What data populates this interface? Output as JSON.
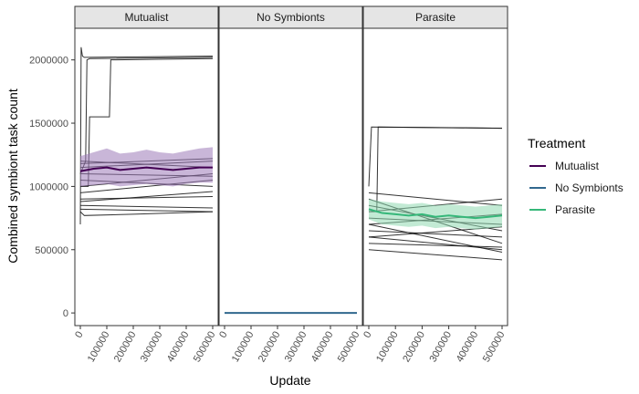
{
  "chart_data": {
    "type": "line",
    "xlabel": "Update",
    "ylabel": "Combined symbiont task count",
    "x_ticks": [
      "0",
      "100000",
      "200000",
      "300000",
      "400000",
      "500000"
    ],
    "xlim": [
      0,
      500000
    ],
    "y_ticks": [
      "0",
      "500000",
      "1000000",
      "1500000",
      "2000000"
    ],
    "ylim": [
      -100000,
      2250000
    ],
    "panels": [
      {
        "name": "Mutualist",
        "mean": {
          "x": [
            0,
            50000,
            100000,
            150000,
            200000,
            250000,
            300000,
            350000,
            400000,
            450000,
            500000
          ],
          "y": [
            1120000,
            1140000,
            1150000,
            1130000,
            1140000,
            1150000,
            1140000,
            1130000,
            1140000,
            1150000,
            1150000
          ],
          "lower": [
            1000000,
            1010000,
            1020000,
            1000000,
            1010000,
            1020000,
            1010000,
            1000000,
            1020000,
            1030000,
            1030000
          ],
          "upper": [
            1240000,
            1270000,
            1300000,
            1260000,
            1270000,
            1290000,
            1270000,
            1260000,
            1280000,
            1300000,
            1310000
          ]
        },
        "replicates": [
          {
            "x": [
              0,
              3000,
              8000,
              15000,
              500000
            ],
            "y": [
              700000,
              2100000,
              2030000,
              2020000,
              2030000
            ]
          },
          {
            "x": [
              0,
              20000,
              25000,
              35000,
              500000
            ],
            "y": [
              1100000,
              1200000,
              2000000,
              2010000,
              2020000
            ]
          },
          {
            "x": [
              0,
              30000,
              35000,
              110000,
              115000,
              500000
            ],
            "y": [
              1000000,
              1000000,
              1550000,
              1550000,
              2000000,
              2010000
            ]
          },
          {
            "x": [
              0,
              15000,
              200000,
              500000
            ],
            "y": [
              800000,
              770000,
              780000,
              800000
            ]
          },
          {
            "x": [
              0,
              500000
            ],
            "y": [
              1100000,
              1080000
            ]
          },
          {
            "x": [
              0,
              500000
            ],
            "y": [
              950000,
              1050000
            ]
          },
          {
            "x": [
              0,
              500000
            ],
            "y": [
              1200000,
              1150000
            ]
          },
          {
            "x": [
              0,
              500000
            ],
            "y": [
              900000,
              920000
            ]
          },
          {
            "x": [
              0,
              500000
            ],
            "y": [
              1050000,
              1000000
            ]
          },
          {
            "x": [
              0,
              500000
            ],
            "y": [
              1150000,
              1200000
            ]
          },
          {
            "x": [
              0,
              500000
            ],
            "y": [
              850000,
              830000
            ]
          },
          {
            "x": [
              0,
              500000
            ],
            "y": [
              1000000,
              1100000
            ]
          },
          {
            "x": [
              0,
              500000
            ],
            "y": [
              1180000,
              1220000
            ]
          },
          {
            "x": [
              0,
              500000
            ],
            "y": [
              880000,
              960000
            ]
          },
          {
            "x": [
              0,
              500000
            ],
            "y": [
              820000,
              800000
            ]
          }
        ]
      },
      {
        "name": "No Symbionts",
        "mean": {
          "x": [
            0,
            500000
          ],
          "y": [
            0,
            0
          ],
          "lower": [
            0,
            0
          ],
          "upper": [
            0,
            0
          ]
        },
        "replicates": []
      },
      {
        "name": "Parasite",
        "mean": {
          "x": [
            0,
            50000,
            100000,
            150000,
            200000,
            250000,
            300000,
            350000,
            400000,
            450000,
            500000
          ],
          "y": [
            820000,
            790000,
            780000,
            770000,
            780000,
            760000,
            770000,
            760000,
            750000,
            760000,
            770000
          ],
          "lower": [
            740000,
            700000,
            690000,
            680000,
            690000,
            670000,
            680000,
            670000,
            660000,
            670000,
            680000
          ],
          "upper": [
            900000,
            880000,
            870000,
            860000,
            870000,
            850000,
            860000,
            850000,
            840000,
            850000,
            860000
          ]
        },
        "replicates": [
          {
            "x": [
              0,
              10000,
              500000
            ],
            "y": [
              1000000,
              1470000,
              1460000
            ]
          },
          {
            "x": [
              0,
              30000,
              35000,
              500000
            ],
            "y": [
              800000,
              800000,
              1470000,
              1460000
            ]
          },
          {
            "x": [
              0,
              500000
            ],
            "y": [
              600000,
              500000
            ]
          },
          {
            "x": [
              0,
              500000
            ],
            "y": [
              700000,
              480000
            ]
          },
          {
            "x": [
              0,
              500000
            ],
            "y": [
              500000,
              420000
            ]
          },
          {
            "x": [
              0,
              500000
            ],
            "y": [
              900000,
              550000
            ]
          },
          {
            "x": [
              0,
              500000
            ],
            "y": [
              650000,
              600000
            ]
          },
          {
            "x": [
              0,
              500000
            ],
            "y": [
              750000,
              700000
            ]
          },
          {
            "x": [
              0,
              500000
            ],
            "y": [
              550000,
              520000
            ]
          },
          {
            "x": [
              0,
              500000
            ],
            "y": [
              850000,
              650000
            ]
          },
          {
            "x": [
              0,
              500000
            ],
            "y": [
              700000,
              780000
            ]
          },
          {
            "x": [
              0,
              500000
            ],
            "y": [
              950000,
              850000
            ]
          },
          {
            "x": [
              0,
              500000
            ],
            "y": [
              600000,
              680000
            ]
          },
          {
            "x": [
              0,
              500000
            ],
            "y": [
              800000,
              900000
            ]
          }
        ]
      }
    ],
    "legend": {
      "title": "Treatment",
      "placement": "right",
      "entries": [
        {
          "label": "Mutualist",
          "color": "#440154"
        },
        {
          "label": "No Symbionts",
          "color": "#31688E"
        },
        {
          "label": "Parasite",
          "color": "#35B779"
        }
      ]
    },
    "colors": {
      "Mutualist": "#440154",
      "Mutualist_band": "#9C7AB8",
      "No Symbionts": "#31688E",
      "Parasite": "#35B779",
      "Parasite_band": "#8FD9B0",
      "replicate": "#111111",
      "strip_fill": "#E5E5E5"
    },
    "grid": false
  }
}
